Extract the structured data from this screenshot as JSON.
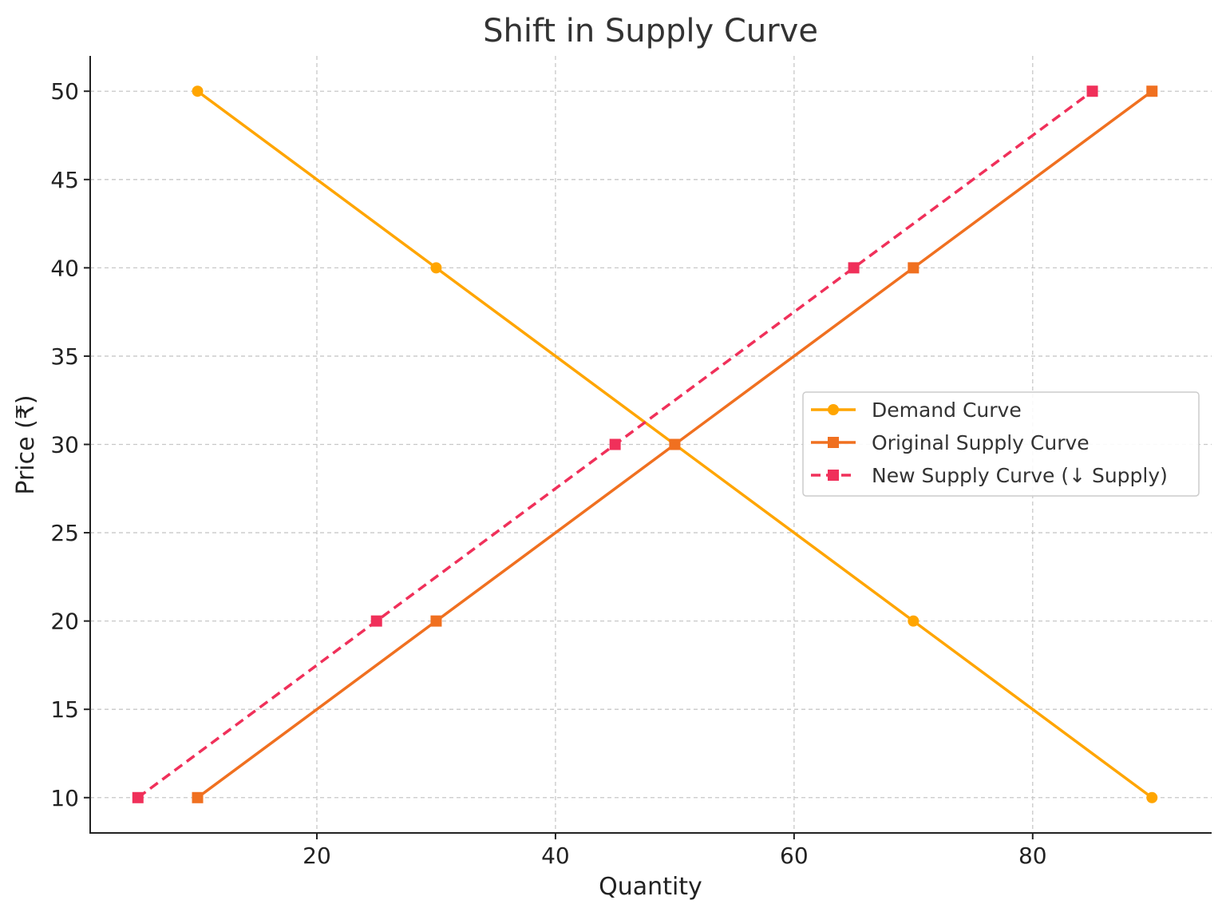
{
  "chart_data": {
    "type": "line",
    "title": "Shift in Supply Curve",
    "xlabel": "Quantity",
    "ylabel": "Price (₹)",
    "xlim": [
      1,
      95
    ],
    "ylim": [
      8,
      52
    ],
    "xticks": [
      20,
      40,
      60,
      80
    ],
    "yticks": [
      10,
      15,
      20,
      25,
      30,
      35,
      40,
      45,
      50
    ],
    "grid": true,
    "legend_position": "center-right",
    "series": [
      {
        "name": "Demand Curve",
        "color": "#FFA500",
        "marker": "circle",
        "line_style": "solid",
        "points": [
          [
            10,
            50
          ],
          [
            30,
            40
          ],
          [
            50,
            30
          ],
          [
            70,
            20
          ],
          [
            90,
            10
          ]
        ]
      },
      {
        "name": "Original Supply Curve",
        "color": "#F07020",
        "marker": "square",
        "line_style": "solid",
        "points": [
          [
            10,
            10
          ],
          [
            30,
            20
          ],
          [
            50,
            30
          ],
          [
            70,
            40
          ],
          [
            90,
            50
          ]
        ]
      },
      {
        "name": "New Supply Curve (↓ Supply)",
        "color": "#F0305A",
        "marker": "square",
        "line_style": "dashed",
        "points": [
          [
            5,
            10
          ],
          [
            25,
            20
          ],
          [
            45,
            30
          ],
          [
            65,
            40
          ],
          [
            85,
            50
          ]
        ]
      }
    ]
  }
}
